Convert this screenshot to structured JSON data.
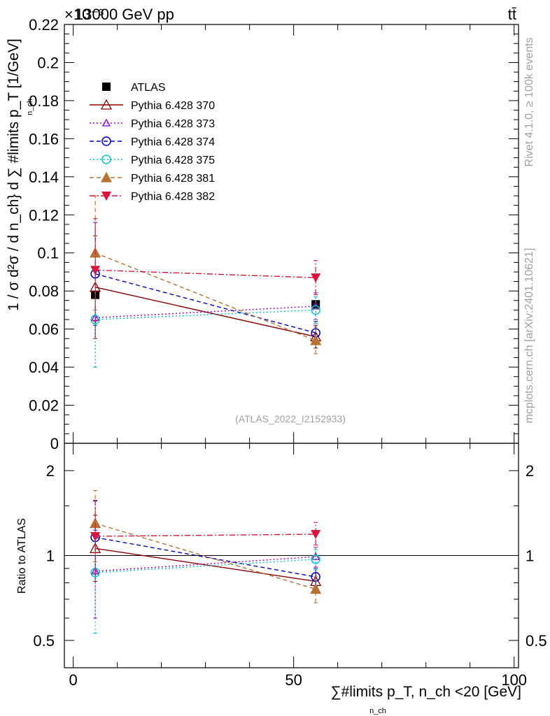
{
  "header": {
    "energy_label": "13000 GeV pp",
    "process_label": "tt̄",
    "exponent_label": "×10⁻³",
    "watermark_right": "Rivet 4.1.0, ≥ 100k events",
    "watermark_site": "mcplots.cern.ch [arXiv:2401.10621]",
    "analysis_label": "(ATLAS_2022_I2152933)"
  },
  "chart_data": [
    {
      "type": "line",
      "panel": "main",
      "ylabel": "1 / σ d²σ / d n_ch} d ∑ #limits p_T [1/GeV]",
      "ylabel_index": "n_ch",
      "ylim": [
        0,
        0.22
      ],
      "xlim": [
        -2,
        101
      ],
      "yticks": [
        0,
        0.02,
        0.04,
        0.06,
        0.08,
        0.1,
        0.12,
        0.14,
        0.16,
        0.18,
        0.2,
        0.22
      ],
      "ytick_labels": [
        "0",
        "0.02",
        "0.04",
        "0.06",
        "0.08",
        "0.1",
        "0.12",
        "0.14",
        "0.16",
        "0.18",
        "0.2",
        "0.22"
      ],
      "x": [
        5,
        55
      ],
      "series": [
        {
          "name": "ATLAS",
          "values": [
            0.078,
            0.073
          ],
          "err": [
            0.0,
            0.0
          ],
          "color": "#000000",
          "marker": "square",
          "line": "none"
        },
        {
          "name": "Pythia 6.428 370",
          "values": [
            0.082,
            0.056
          ],
          "err": [
            0.027,
            0.006
          ],
          "color": "#8b0000",
          "marker": "triangle-open",
          "line": "solid"
        },
        {
          "name": "Pythia 6.428 373",
          "values": [
            0.066,
            0.072
          ],
          "err": [
            0.026,
            0.007
          ],
          "color": "#9400d3",
          "marker": "triangle-open-small",
          "line": "dotted"
        },
        {
          "name": "Pythia 6.428 374",
          "values": [
            0.089,
            0.058
          ],
          "err": [
            0.027,
            0.006
          ],
          "color": "#0000cd",
          "marker": "circle-open",
          "line": "dashed"
        },
        {
          "name": "Pythia 6.428 375",
          "values": [
            0.065,
            0.07
          ],
          "err": [
            0.025,
            0.007
          ],
          "color": "#00c5cd",
          "marker": "circle-open",
          "line": "dotted"
        },
        {
          "name": "Pythia 6.428 381",
          "values": [
            0.1,
            0.054
          ],
          "err": [
            0.03,
            0.007
          ],
          "color": "#b87333",
          "marker": "triangle-filled",
          "line": "dashed"
        },
        {
          "name": "Pythia 6.428 382",
          "values": [
            0.091,
            0.087
          ],
          "err": [
            0.027,
            0.009
          ],
          "color": "#dc143c",
          "marker": "triangle-down-filled",
          "line": "dashdot"
        }
      ]
    },
    {
      "type": "line",
      "panel": "ratio",
      "ylabel": "Ratio to ATLAS",
      "xlabel": "∑#limits p_T, n_ch <20 [GeV]",
      "xlabel_index": "n_ch",
      "yscale": "log",
      "ylim": [
        0.4,
        2.5
      ],
      "xlim": [
        -2,
        101
      ],
      "yticks": [
        0.5,
        1,
        2
      ],
      "ytick_labels": [
        "0.5",
        "1",
        "2"
      ],
      "xticks": [
        0,
        50,
        100
      ],
      "xtick_labels": [
        "0",
        "50",
        "100"
      ],
      "x": [
        5,
        55
      ],
      "series": [
        {
          "name": "Pythia 6.428 370",
          "values": [
            1.06,
            0.81
          ],
          "err_lo": [
            0.25,
            0.06
          ],
          "err_hi": [
            0.33,
            0.06
          ],
          "color": "#8b0000",
          "marker": "triangle-open",
          "line": "solid"
        },
        {
          "name": "Pythia 6.428 373",
          "values": [
            0.88,
            0.99
          ],
          "err_lo": [
            0.28,
            0.08
          ],
          "err_hi": [
            0.35,
            0.08
          ],
          "color": "#9400d3",
          "marker": "triangle-open-small",
          "line": "dotted"
        },
        {
          "name": "Pythia 6.428 374",
          "values": [
            1.16,
            0.84
          ],
          "err_lo": [
            0.3,
            0.06
          ],
          "err_hi": [
            0.4,
            0.06
          ],
          "color": "#0000cd",
          "marker": "circle-open",
          "line": "dashed"
        },
        {
          "name": "Pythia 6.428 375",
          "values": [
            0.87,
            0.97
          ],
          "err_lo": [
            0.34,
            0.08
          ],
          "err_hi": [
            0.4,
            0.08
          ],
          "color": "#00c5cd",
          "marker": "circle-open",
          "line": "dotted"
        },
        {
          "name": "Pythia 6.428 381",
          "values": [
            1.3,
            0.76
          ],
          "err_lo": [
            0.35,
            0.08
          ],
          "err_hi": [
            0.4,
            0.08
          ],
          "color": "#b87333",
          "marker": "triangle-filled",
          "line": "dashed"
        },
        {
          "name": "Pythia 6.428 382",
          "values": [
            1.17,
            1.19
          ],
          "err_lo": [
            0.3,
            0.1
          ],
          "err_hi": [
            0.4,
            0.12
          ],
          "color": "#dc143c",
          "marker": "triangle-down-filled",
          "line": "dashdot"
        }
      ]
    }
  ]
}
